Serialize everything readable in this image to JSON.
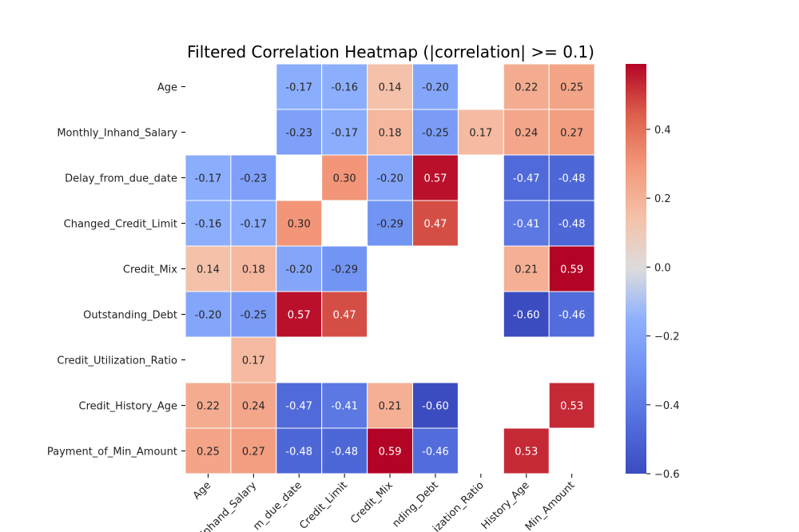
{
  "chart_data": {
    "type": "heatmap",
    "title": "Filtered Correlation Heatmap (|correlation| >= 0.1)",
    "xlabel": "",
    "ylabel": "",
    "row_labels": [
      "Age",
      "Monthly_Inhand_Salary",
      "Delay_from_due_date",
      "Changed_Credit_Limit",
      "Credit_Mix",
      "Outstanding_Debt",
      "Credit_Utilization_Ratio",
      "Credit_History_Age",
      "Payment_of_Min_Amount"
    ],
    "col_labels": [
      "Age",
      "Inhand_Salary",
      "m_due_date",
      "Credit_Limit",
      "Credit_Mix",
      "nding_Debt",
      "ization_Ratio",
      "History_Age",
      "Min_Amount"
    ],
    "values": [
      [
        null,
        null,
        -0.17,
        -0.16,
        0.14,
        -0.2,
        null,
        0.22,
        0.25
      ],
      [
        null,
        null,
        -0.23,
        -0.17,
        0.18,
        -0.25,
        0.17,
        0.24,
        0.27
      ],
      [
        -0.17,
        -0.23,
        null,
        0.3,
        -0.2,
        0.57,
        null,
        -0.47,
        -0.48
      ],
      [
        -0.16,
        -0.17,
        0.3,
        null,
        -0.29,
        0.47,
        null,
        -0.41,
        -0.48
      ],
      [
        0.14,
        0.18,
        -0.2,
        -0.29,
        null,
        null,
        null,
        0.21,
        0.59
      ],
      [
        -0.2,
        -0.25,
        0.57,
        0.47,
        null,
        null,
        null,
        -0.6,
        -0.46
      ],
      [
        null,
        0.17,
        null,
        null,
        null,
        null,
        null,
        null,
        null
      ],
      [
        0.22,
        0.24,
        -0.47,
        -0.41,
        0.21,
        -0.6,
        null,
        null,
        0.53
      ],
      [
        0.25,
        0.27,
        -0.48,
        -0.48,
        0.59,
        -0.46,
        null,
        0.53,
        null
      ]
    ],
    "colormap": "coolwarm",
    "vmin": -0.6,
    "vmax": 0.59,
    "colorbar_ticks": [
      0.4,
      0.2,
      0.0,
      -0.2,
      -0.4,
      -0.6
    ],
    "colorbar_tick_labels": [
      "0.4",
      "0.2",
      "0.0",
      "−0.2",
      "−0.4",
      "−0.6"
    ]
  }
}
